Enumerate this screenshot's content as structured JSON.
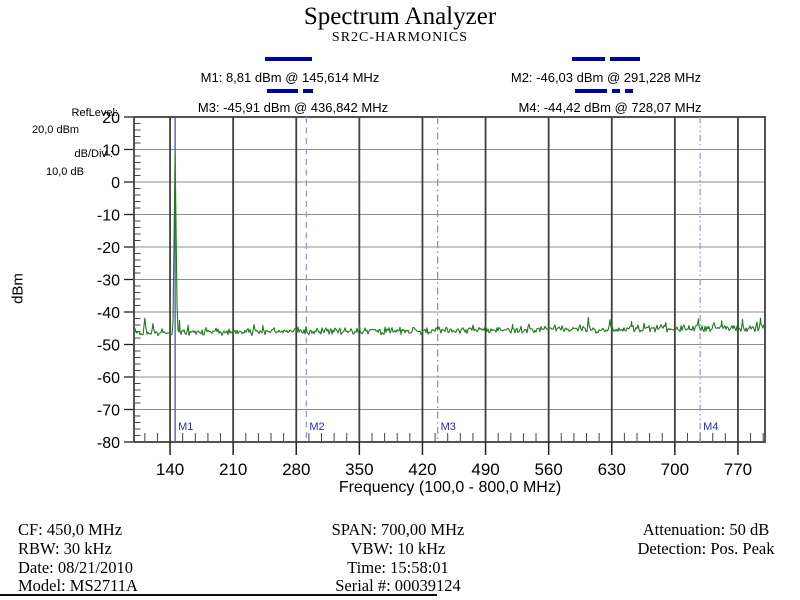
{
  "header": {
    "title": "Spectrum Analyzer",
    "subtitle": "SR2C-HARMONICS"
  },
  "settings": {
    "ref_level_label": "RefLevel:",
    "ref_level_value": "20,0  dBm",
    "db_div_label": "dB/Div :",
    "db_div_value": "10,0 dB"
  },
  "chart_data": {
    "type": "line",
    "title": "Spectrum Analyzer",
    "subtitle": "SR2C-HARMONICS",
    "xlabel": "Frequency (100,0 - 800,0 MHz)",
    "ylabel": "dBm",
    "xlim": [
      100,
      800
    ],
    "ylim": [
      -80,
      20
    ],
    "x_ticks": [
      140,
      210,
      280,
      350,
      420,
      490,
      560,
      630,
      700,
      770
    ],
    "y_ticks": [
      20,
      10,
      0,
      -10,
      -20,
      -30,
      -40,
      -50,
      -60,
      -70,
      -80
    ],
    "x_minor_step_mhz": 14,
    "y_minor_step_db": 2,
    "grid": true,
    "colors": {
      "trace": "#1d7c1d",
      "grid_h": "#8c8c8c",
      "grid_v": "#3f3f3f",
      "marker_accent": "#0000a0",
      "marker_label": "#2b2bb5"
    },
    "trace": {
      "name": "spectrum-trace",
      "color": "#1d7c1d",
      "noise": {
        "seed": 12,
        "floor_start_dbm": -46.4,
        "floor_end_dbm": -44.8,
        "jitter_db": 0.9
      },
      "peaks": [
        {
          "freq_mhz": 145.614,
          "level_dbm": 8.81,
          "slope_db_per_mhz": 22
        },
        {
          "freq_mhz": 112,
          "level_dbm": -41.9,
          "slope_db_per_mhz": 2.5
        },
        {
          "freq_mhz": 121,
          "level_dbm": -43.6,
          "slope_db_per_mhz": 3
        },
        {
          "freq_mhz": 150.5,
          "level_dbm": -42.6,
          "slope_db_per_mhz": 6
        },
        {
          "freq_mhz": 160,
          "level_dbm": -44.0,
          "slope_db_per_mhz": 4
        },
        {
          "freq_mhz": 243,
          "level_dbm": -44.2,
          "slope_db_per_mhz": 4
        },
        {
          "freq_mhz": 350,
          "level_dbm": -44.0,
          "slope_db_per_mhz": 4
        },
        {
          "freq_mhz": 437,
          "level_dbm": -44.3,
          "slope_db_per_mhz": 4
        },
        {
          "freq_mhz": 520,
          "level_dbm": -43.8,
          "slope_db_per_mhz": 4
        },
        {
          "freq_mhz": 604,
          "level_dbm": -41.7,
          "slope_db_per_mhz": 3
        },
        {
          "freq_mhz": 628,
          "level_dbm": -42.4,
          "slope_db_per_mhz": 3.5
        },
        {
          "freq_mhz": 652,
          "level_dbm": -42.9,
          "slope_db_per_mhz": 3.5
        },
        {
          "freq_mhz": 690,
          "level_dbm": -43.3,
          "slope_db_per_mhz": 4
        },
        {
          "freq_mhz": 726,
          "level_dbm": -42.1,
          "slope_db_per_mhz": 3
        },
        {
          "freq_mhz": 752,
          "level_dbm": -42.7,
          "slope_db_per_mhz": 3.5
        },
        {
          "freq_mhz": 775,
          "level_dbm": -42.3,
          "slope_db_per_mhz": 3
        },
        {
          "freq_mhz": 795,
          "level_dbm": -41.9,
          "slope_db_per_mhz": 3
        }
      ]
    },
    "markers": [
      {
        "short_label": "M1",
        "label": "M1: 8,81 dBm @ 145,614 MHz",
        "freq_mhz": 145.614,
        "level_dbm": 8.81,
        "line_style": "solid",
        "line_color": "#5050b0"
      },
      {
        "short_label": "M2",
        "label": "M2: -46,03 dBm @ 291,228 MHz",
        "freq_mhz": 291.228,
        "level_dbm": -46.03,
        "line_style": "dashed",
        "line_color": "#9a9ad2"
      },
      {
        "short_label": "M3",
        "label": "M3: -45,91 dBm @ 436,842 MHz",
        "freq_mhz": 436.842,
        "level_dbm": -45.91,
        "line_style": "dash-dot",
        "line_color": "#8e8ecb"
      },
      {
        "short_label": "M4",
        "label": "M4: -44,42 dBm @ 728,07 MHz",
        "freq_mhz": 728.07,
        "level_dbm": -44.42,
        "line_style": "dash-dot-dot",
        "line_color": "#9a9ad2"
      }
    ]
  },
  "footer": {
    "col1": [
      "CF: 450,0 MHz",
      "RBW: 30 kHz",
      "Date: 08/21/2010",
      "Model: MS2711A"
    ],
    "col2": [
      "SPAN: 700,00 MHz",
      "VBW: 10 kHz",
      "Time: 15:58:01",
      "Serial #: 00039124"
    ],
    "col3": [
      "Attenuation: 50 dB",
      "Detection: Pos. Peak"
    ]
  }
}
